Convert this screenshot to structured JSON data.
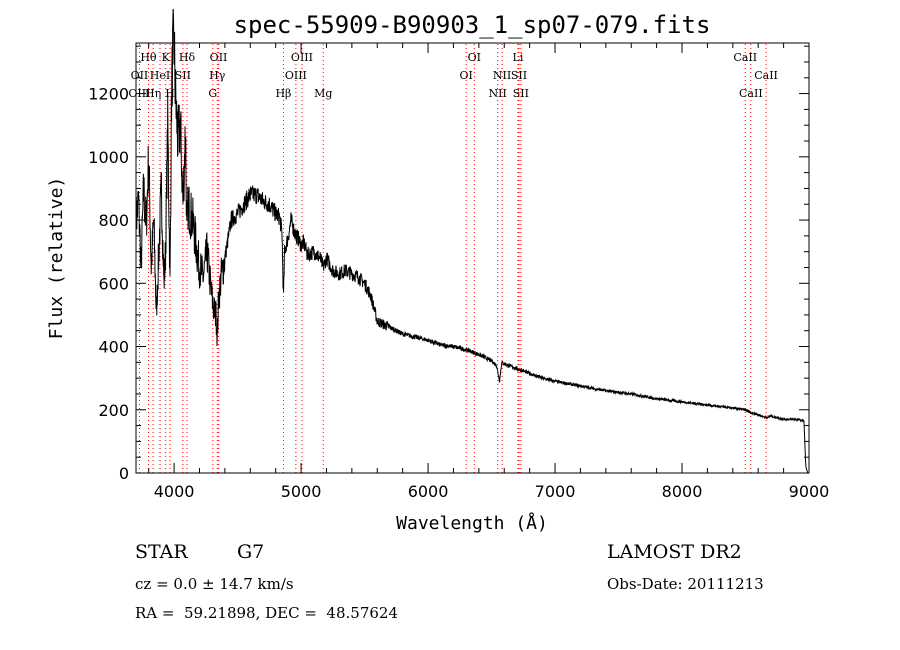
{
  "chart_data": {
    "type": "line",
    "title": "spec-55909-B90903_1_sp07-079.fits",
    "xlabel": "Wavelength (Å)",
    "ylabel": "Flux (relative)",
    "xlim": [
      3700,
      9000
    ],
    "ylim": [
      0,
      1360
    ],
    "xticks": [
      4000,
      5000,
      6000,
      7000,
      8000,
      9000
    ],
    "yticks": [
      0,
      200,
      400,
      600,
      800,
      1000,
      1200
    ],
    "grid": false,
    "line_color": "#000000",
    "marker_color": "#ff0000",
    "series": [
      {
        "x": [
          3700,
          3720,
          3740,
          3760,
          3780,
          3800,
          3820,
          3840,
          3860,
          3880,
          3900,
          3920,
          3933,
          3950,
          3968,
          3980,
          3990,
          4000,
          4010,
          4030,
          4050,
          4070,
          4090,
          4100,
          4110,
          4130,
          4150,
          4180,
          4200,
          4230,
          4260,
          4290,
          4310,
          4330,
          4340,
          4350,
          4370,
          4400,
          4450,
          4500,
          4550,
          4600,
          4650,
          4700,
          4750,
          4800,
          4830,
          4850,
          4861,
          4870,
          4900,
          4920,
          4950,
          4980,
          5000,
          5020,
          5050,
          5100,
          5150,
          5175,
          5200,
          5250,
          5300,
          5350,
          5400,
          5450,
          5500,
          5550,
          5600,
          5650,
          5700,
          5750,
          5800,
          5900,
          6000,
          6100,
          6200,
          6300,
          6400,
          6500,
          6540,
          6563,
          6580,
          6600,
          6700,
          6800,
          6900,
          7000,
          7200,
          7400,
          7600,
          7800,
          8000,
          8200,
          8400,
          8500,
          8542,
          8600,
          8662,
          8700,
          8800,
          8900,
          8960,
          8975,
          8990
        ],
        "y": [
          800,
          860,
          650,
          900,
          780,
          1000,
          650,
          800,
          500,
          700,
          900,
          600,
          700,
          1100,
          600,
          1200,
          1330,
          1360,
          1200,
          1050,
          1100,
          850,
          1100,
          750,
          850,
          820,
          790,
          700,
          650,
          620,
          700,
          580,
          520,
          500,
          430,
          550,
          620,
          680,
          800,
          820,
          850,
          880,
          880,
          860,
          850,
          820,
          810,
          760,
          550,
          700,
          750,
          800,
          760,
          740,
          720,
          730,
          690,
          700,
          680,
          650,
          680,
          640,
          630,
          640,
          630,
          620,
          600,
          560,
          480,
          470,
          460,
          450,
          440,
          430,
          420,
          405,
          400,
          390,
          375,
          355,
          340,
          290,
          350,
          345,
          330,
          315,
          300,
          290,
          275,
          260,
          250,
          235,
          225,
          215,
          205,
          200,
          190,
          185,
          175,
          180,
          170,
          170,
          165,
          20,
          0
        ]
      }
    ],
    "lines": [
      {
        "label": "Hθ",
        "x": 3798,
        "row": 0
      },
      {
        "label": "K",
        "x": 3934,
        "row": 0
      },
      {
        "label": "Hδ",
        "x": 4102,
        "row": 0
      },
      {
        "label": "OII",
        "x": 4350,
        "row": 0
      },
      {
        "label": "OIII",
        "x": 5007,
        "row": 0
      },
      {
        "label": "OI",
        "x": 6364,
        "row": 0
      },
      {
        "label": "Li",
        "x": 6708,
        "row": 0
      },
      {
        "label": "CaII",
        "x": 8498,
        "row": 0
      },
      {
        "label": "OII",
        "x": 3727,
        "row": 1
      },
      {
        "label": "HeI",
        "x": 3889,
        "row": 1
      },
      {
        "label": "SII",
        "x": 4069,
        "row": 1
      },
      {
        "label": "Hγ",
        "x": 4340,
        "row": 1
      },
      {
        "label": "OIII",
        "x": 4959,
        "row": 1
      },
      {
        "label": "OI",
        "x": 6300,
        "row": 1
      },
      {
        "label": "NII",
        "x": 6583,
        "row": 1
      },
      {
        "label": "SII",
        "x": 6716,
        "row": 1
      },
      {
        "label": "CaII",
        "x": 8662,
        "row": 1
      },
      {
        "label": "OIII",
        "x": 3727,
        "row": 2
      },
      {
        "label": "Hη",
        "x": 3835,
        "row": 2
      },
      {
        "label": "H",
        "x": 3968,
        "row": 2
      },
      {
        "label": "G",
        "x": 4305,
        "row": 2
      },
      {
        "label": "Hβ",
        "x": 4861,
        "row": 2
      },
      {
        "label": "Mg",
        "x": 5175,
        "row": 2
      },
      {
        "label": "NII",
        "x": 6548,
        "row": 2
      },
      {
        "label": "SII",
        "x": 6731,
        "row": 2
      },
      {
        "label": "CaII",
        "x": 8542,
        "row": 2
      }
    ]
  },
  "info": {
    "class": "STAR",
    "subclass": "G7",
    "survey": "LAMOST DR2",
    "cz": "cz = 0.0 ± 14.7 km/s",
    "obs_date": "Obs-Date: 20111213",
    "coords": "RA =  59.21898, DEC =  48.57624"
  }
}
